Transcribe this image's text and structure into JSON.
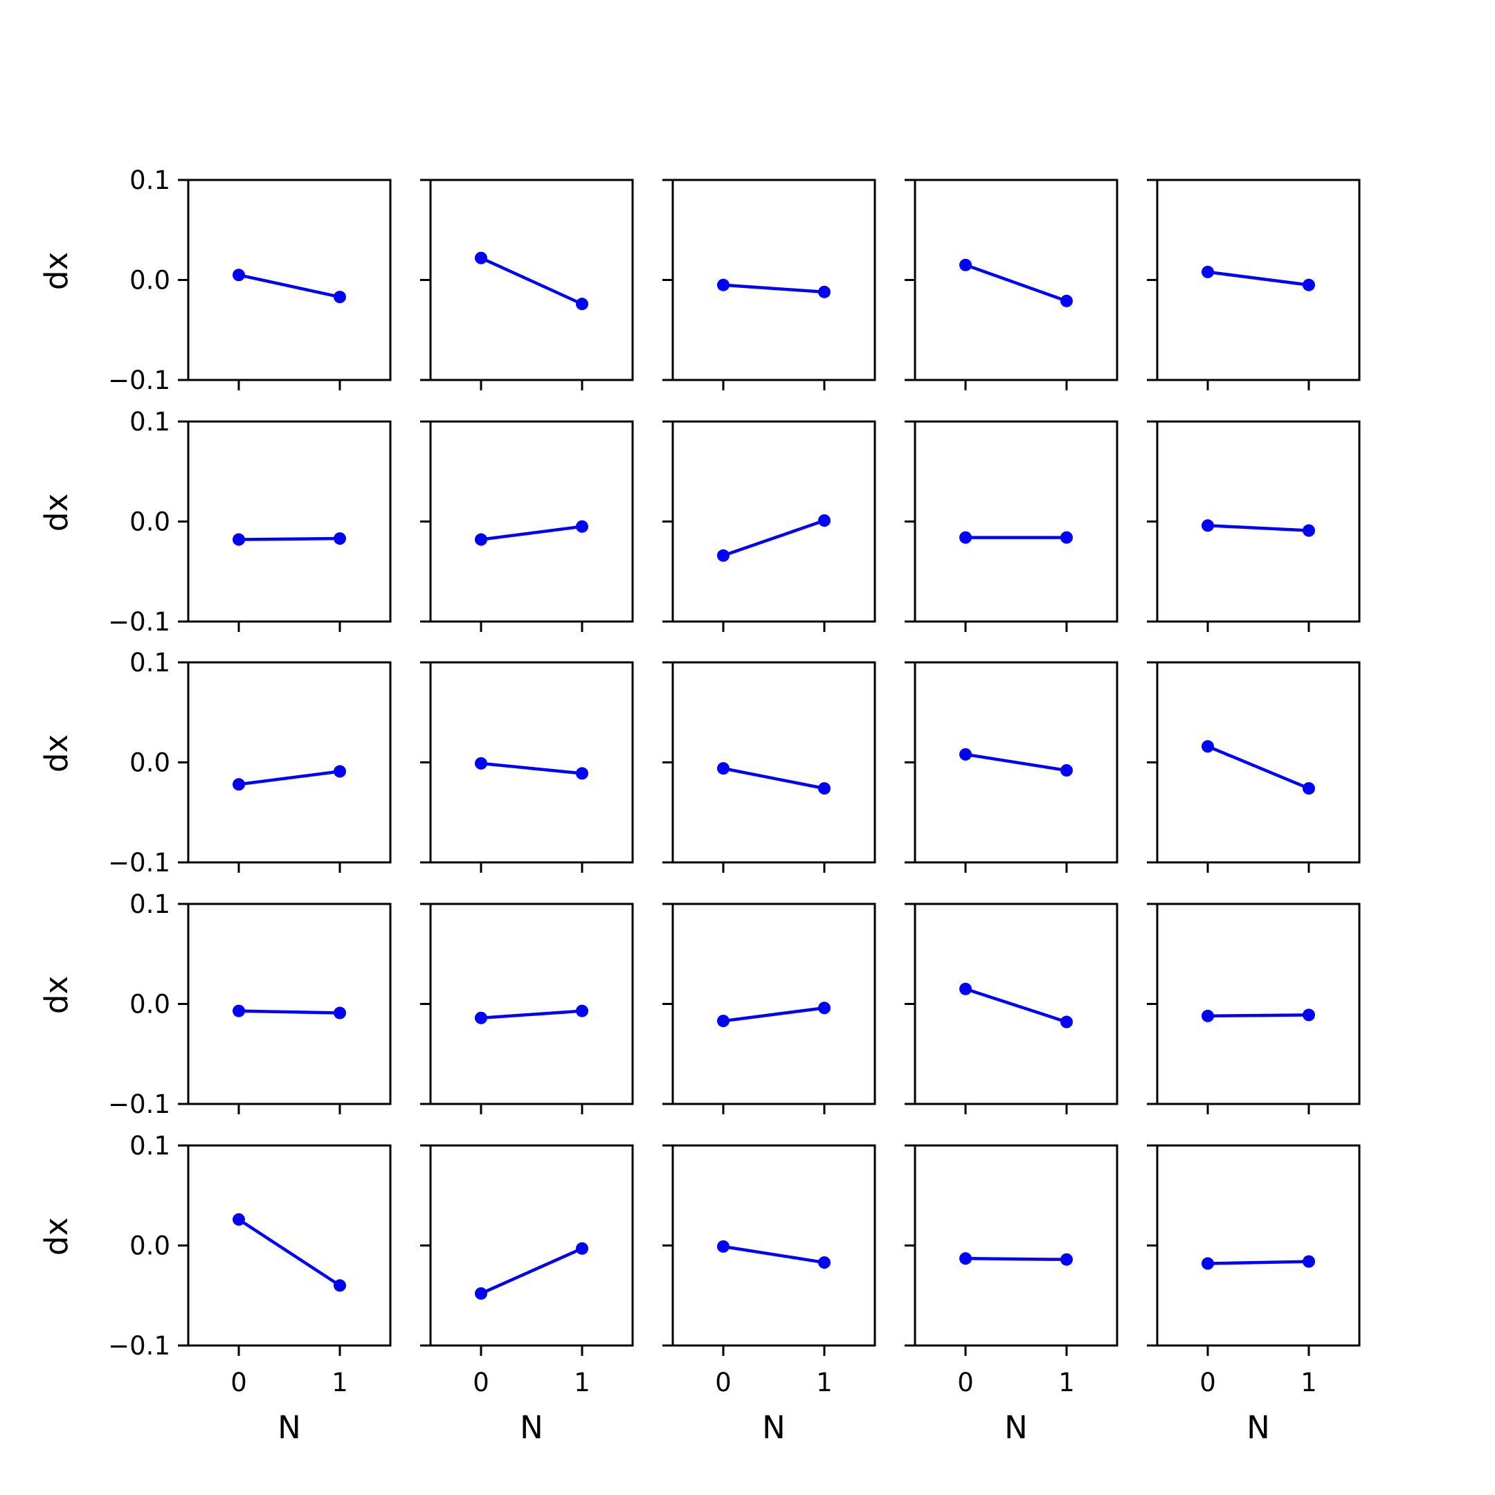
{
  "chart_data": {
    "type": "line",
    "layout": "5x5 grid of small multiples",
    "shared_x_ticks": [
      "0",
      "1"
    ],
    "shared_y_ticks": [
      "0.1",
      "0.0",
      "−0.1"
    ],
    "xlabel": "N",
    "ylabel": "dx",
    "xlim": [
      -0.5,
      1.5
    ],
    "ylim": [
      -0.1,
      0.1
    ],
    "x": [
      0,
      1
    ],
    "series_color": "#0000ff",
    "marker": "circle",
    "grid": false,
    "panels": [
      {
        "row": 0,
        "col": 0,
        "values": [
          0.005,
          -0.017
        ]
      },
      {
        "row": 0,
        "col": 1,
        "values": [
          0.022,
          -0.024
        ]
      },
      {
        "row": 0,
        "col": 2,
        "values": [
          -0.005,
          -0.012
        ]
      },
      {
        "row": 0,
        "col": 3,
        "values": [
          0.015,
          -0.021
        ]
      },
      {
        "row": 0,
        "col": 4,
        "values": [
          0.008,
          -0.005
        ]
      },
      {
        "row": 1,
        "col": 0,
        "values": [
          -0.018,
          -0.017
        ]
      },
      {
        "row": 1,
        "col": 1,
        "values": [
          -0.018,
          -0.005
        ]
      },
      {
        "row": 1,
        "col": 2,
        "values": [
          -0.034,
          0.001
        ]
      },
      {
        "row": 1,
        "col": 3,
        "values": [
          -0.016,
          -0.016
        ]
      },
      {
        "row": 1,
        "col": 4,
        "values": [
          -0.004,
          -0.009
        ]
      },
      {
        "row": 2,
        "col": 0,
        "values": [
          -0.022,
          -0.009
        ]
      },
      {
        "row": 2,
        "col": 1,
        "values": [
          -0.001,
          -0.011
        ]
      },
      {
        "row": 2,
        "col": 2,
        "values": [
          -0.006,
          -0.026
        ]
      },
      {
        "row": 2,
        "col": 3,
        "values": [
          0.008,
          -0.008
        ]
      },
      {
        "row": 2,
        "col": 4,
        "values": [
          0.016,
          -0.026
        ]
      },
      {
        "row": 3,
        "col": 0,
        "values": [
          -0.007,
          -0.009
        ]
      },
      {
        "row": 3,
        "col": 1,
        "values": [
          -0.014,
          -0.007
        ]
      },
      {
        "row": 3,
        "col": 2,
        "values": [
          -0.017,
          -0.004
        ]
      },
      {
        "row": 3,
        "col": 3,
        "values": [
          0.015,
          -0.018
        ]
      },
      {
        "row": 3,
        "col": 4,
        "values": [
          -0.012,
          -0.011
        ]
      },
      {
        "row": 4,
        "col": 0,
        "values": [
          0.026,
          -0.04
        ]
      },
      {
        "row": 4,
        "col": 1,
        "values": [
          -0.048,
          -0.003
        ]
      },
      {
        "row": 4,
        "col": 2,
        "values": [
          -0.001,
          -0.017
        ]
      },
      {
        "row": 4,
        "col": 3,
        "values": [
          -0.013,
          -0.014
        ]
      },
      {
        "row": 4,
        "col": 4,
        "values": [
          -0.018,
          -0.016
        ]
      }
    ]
  }
}
